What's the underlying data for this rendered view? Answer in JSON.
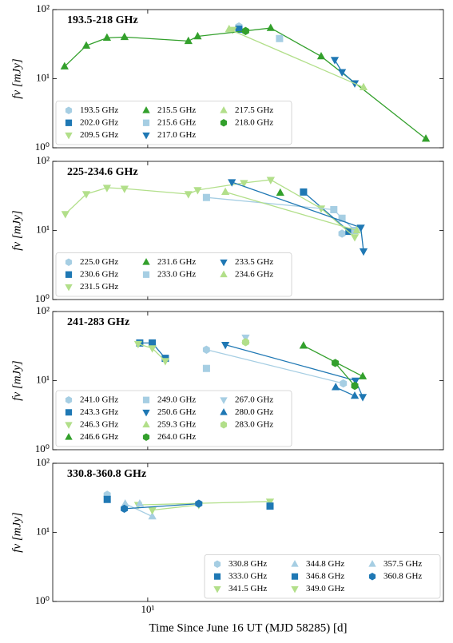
{
  "chart_data": [
    {
      "type": "scatter",
      "title": "193.5-218 GHz",
      "ylabel": "fν [mJy]",
      "xscale": "log",
      "yscale": "log",
      "xlim": [
        5.42,
        67.3
      ],
      "ylim": [
        1,
        100
      ],
      "xticks": [
        10
      ],
      "yticks": [
        {
          "value": 1,
          "label": "10⁰"
        },
        {
          "value": 10,
          "label": "10¹"
        },
        {
          "value": 100,
          "label": "10²"
        }
      ],
      "legend_loc": "lower left",
      "legend_columns": 3,
      "series": [
        {
          "name": "193.5 GHz",
          "color": "#a6cee3",
          "marker": "hexagon",
          "x": [
            18.0
          ],
          "values": [
            57
          ]
        },
        {
          "name": "202.0 GHz",
          "color": "#1f78b4",
          "marker": "square",
          "x": [
            18.0
          ],
          "values": [
            52
          ]
        },
        {
          "name": "209.5 GHz",
          "color": "#b2df8a",
          "marker": "triangle-down",
          "x": [
            17.3
          ],
          "values": [
            51
          ]
        },
        {
          "name": "215.5 GHz",
          "color": "#33a02c",
          "marker": "triangle-up",
          "x": [
            5.85,
            6.73,
            7.69,
            8.61,
            13.0,
            13.8,
            22.1,
            30.6,
            60.1
          ],
          "values": [
            15,
            30,
            39,
            40,
            35,
            41,
            54,
            21,
            1.35
          ]
        },
        {
          "name": "215.6 GHz",
          "color": "#a6cee3",
          "marker": "square",
          "x": [
            23.4
          ],
          "values": [
            38
          ]
        },
        {
          "name": "217.0 GHz",
          "color": "#1f78b4",
          "marker": "triangle-down",
          "x": [
            33.4,
            35.0,
            38.0
          ],
          "values": [
            18.7,
            12.5,
            8.6
          ]
        },
        {
          "name": "217.5 GHz",
          "color": "#b2df8a",
          "marker": "triangle-up",
          "x": [
            16.9,
            40.2
          ],
          "values": [
            52,
            7.5
          ]
        },
        {
          "name": "218.0 GHz",
          "color": "#33a02c",
          "marker": "hexagon",
          "x": [
            18.8
          ],
          "values": [
            49
          ]
        }
      ]
    },
    {
      "type": "scatter",
      "title": "225-234.6 GHz",
      "ylabel": "fν [mJy]",
      "xscale": "log",
      "yscale": "log",
      "xlim": [
        5.42,
        67.3
      ],
      "ylim": [
        1,
        100
      ],
      "xticks": [
        10
      ],
      "yticks": [
        {
          "value": 1,
          "label": "10⁰"
        },
        {
          "value": 10,
          "label": "10¹"
        },
        {
          "value": 100,
          "label": "10²"
        }
      ],
      "legend_loc": "lower left",
      "legend_columns": 3,
      "series": [
        {
          "name": "225.0 GHz",
          "color": "#a6cee3",
          "marker": "hexagon",
          "x": [
            35.0
          ],
          "values": [
            9
          ]
        },
        {
          "name": "230.6 GHz",
          "color": "#1f78b4",
          "marker": "square",
          "x": [
            27.3,
            36.6
          ],
          "values": [
            36,
            9.7
          ]
        },
        {
          "name": "231.5 GHz",
          "color": "#b2df8a",
          "marker": "triangle-down",
          "x": [
            5.88,
            6.73,
            7.69,
            8.61,
            13.0,
            13.8,
            18.6,
            22.1,
            30.6,
            38.0
          ],
          "values": [
            17.3,
            33.6,
            41.5,
            40.3,
            33.6,
            38.5,
            48.7,
            54,
            20.8,
            8.0
          ]
        },
        {
          "name": "231.6 GHz",
          "color": "#33a02c",
          "marker": "triangle-up",
          "x": [
            23.5
          ],
          "values": [
            35
          ]
        },
        {
          "name": "233.0 GHz",
          "color": "#a6cee3",
          "marker": "square",
          "x": [
            14.6,
            33.2,
            35.0,
            38.0
          ],
          "values": [
            30,
            20,
            15,
            10
          ]
        },
        {
          "name": "233.5 GHz",
          "color": "#1f78b4",
          "marker": "triangle-down",
          "x": [
            17.2,
            39.5,
            40.2
          ],
          "values": [
            50,
            11,
            5.0
          ]
        },
        {
          "name": "234.6 GHz",
          "color": "#b2df8a",
          "marker": "triangle-up",
          "x": [
            16.5,
            38.5
          ],
          "values": [
            36,
            10
          ]
        }
      ]
    },
    {
      "type": "scatter",
      "title": "241-283 GHz",
      "ylabel": "fν [mJy]",
      "xscale": "log",
      "yscale": "log",
      "xlim": [
        5.42,
        67.3
      ],
      "ylim": [
        1,
        100
      ],
      "xticks": [
        10
      ],
      "yticks": [
        {
          "value": 1,
          "label": "10⁰"
        },
        {
          "value": 10,
          "label": "10¹"
        },
        {
          "value": 100,
          "label": "10²"
        }
      ],
      "legend_loc": "lower left",
      "legend_columns": 3,
      "series": [
        {
          "name": "241.0 GHz",
          "color": "#a6cee3",
          "marker": "hexagon",
          "x": [
            14.6,
            35.3
          ],
          "values": [
            28,
            9.1
          ]
        },
        {
          "name": "243.3 GHz",
          "color": "#1f78b4",
          "marker": "square",
          "x": [
            9.5,
            10.3,
            11.2
          ],
          "values": [
            35,
            35,
            21
          ]
        },
        {
          "name": "246.3 GHz",
          "color": "#b2df8a",
          "marker": "triangle-down",
          "x": [
            9.4,
            10.3,
            11.2
          ],
          "values": [
            34,
            29.4,
            19.2
          ]
        },
        {
          "name": "246.6 GHz",
          "color": "#33a02c",
          "marker": "triangle-up",
          "x": [
            27.3,
            40.0
          ],
          "values": [
            32,
            11.5
          ]
        },
        {
          "name": "249.0 GHz",
          "color": "#a6cee3",
          "marker": "square",
          "x": [
            14.6
          ],
          "values": [
            15
          ]
        },
        {
          "name": "250.6 GHz",
          "color": "#1f78b4",
          "marker": "triangle-down",
          "x": [
            16.5,
            38.2,
            40.0
          ],
          "values": [
            33,
            10,
            5.8
          ]
        },
        {
          "name": "259.3 GHz",
          "color": "#b2df8a",
          "marker": "triangle-up",
          "x": [
            18.8
          ],
          "values": [
            39
          ]
        },
        {
          "name": "264.0 GHz",
          "color": "#33a02c",
          "marker": "hexagon",
          "x": [
            33.5,
            38.0
          ],
          "values": [
            18,
            8.4
          ]
        },
        {
          "name": "267.0 GHz",
          "color": "#a6cee3",
          "marker": "triangle-down",
          "x": [
            18.8
          ],
          "values": [
            42
          ]
        },
        {
          "name": "280.0 GHz",
          "color": "#1f78b4",
          "marker": "triangle-up",
          "x": [
            33.6,
            38.0
          ],
          "values": [
            8,
            6
          ]
        },
        {
          "name": "283.0 GHz",
          "color": "#b2df8a",
          "marker": "hexagon",
          "x": [
            18.8
          ],
          "values": [
            36
          ]
        }
      ]
    },
    {
      "type": "scatter",
      "title": "330.8-360.8 GHz",
      "ylabel": "fν [mJy]",
      "xlabel": "Time Since June 16 UT (MJD 58285) [d]",
      "xscale": "log",
      "yscale": "log",
      "xlim": [
        5.42,
        67.3
      ],
      "ylim": [
        1,
        100
      ],
      "xticks": [
        {
          "value": 10,
          "label": "10¹"
        }
      ],
      "yticks": [
        {
          "value": 1,
          "label": "10⁰"
        },
        {
          "value": 10,
          "label": "10¹"
        },
        {
          "value": 100,
          "label": "10²"
        }
      ],
      "legend_loc": "lower right",
      "legend_columns": 3,
      "series": [
        {
          "name": "330.8 GHz",
          "color": "#a6cee3",
          "marker": "hexagon",
          "x": [
            7.7
          ],
          "values": [
            35
          ]
        },
        {
          "name": "333.0 GHz",
          "color": "#1f78b4",
          "marker": "square",
          "x": [
            7.7
          ],
          "values": [
            30
          ]
        },
        {
          "name": "341.5 GHz",
          "color": "#b2df8a",
          "marker": "triangle-down",
          "x": [
            9.4,
            22.0
          ],
          "values": [
            25,
            28
          ]
        },
        {
          "name": "344.8 GHz",
          "color": "#a6cee3",
          "marker": "triangle-up",
          "x": [
            8.65,
            10.3
          ],
          "values": [
            26,
            17
          ]
        },
        {
          "name": "346.8 GHz",
          "color": "#1f78b4",
          "marker": "square",
          "x": [
            22.0
          ],
          "values": [
            24
          ]
        },
        {
          "name": "349.0 GHz",
          "color": "#b2df8a",
          "marker": "triangle-down",
          "x": [
            10.3,
            13.9
          ],
          "values": [
            21,
            25
          ]
        },
        {
          "name": "357.5 GHz",
          "color": "#a6cee3",
          "marker": "triangle-up",
          "x": [
            9.5
          ],
          "values": [
            26
          ]
        },
        {
          "name": "360.8 GHz",
          "color": "#1f78b4",
          "marker": "hexagon",
          "x": [
            8.6,
            13.9
          ],
          "values": [
            22,
            26
          ]
        }
      ]
    }
  ]
}
